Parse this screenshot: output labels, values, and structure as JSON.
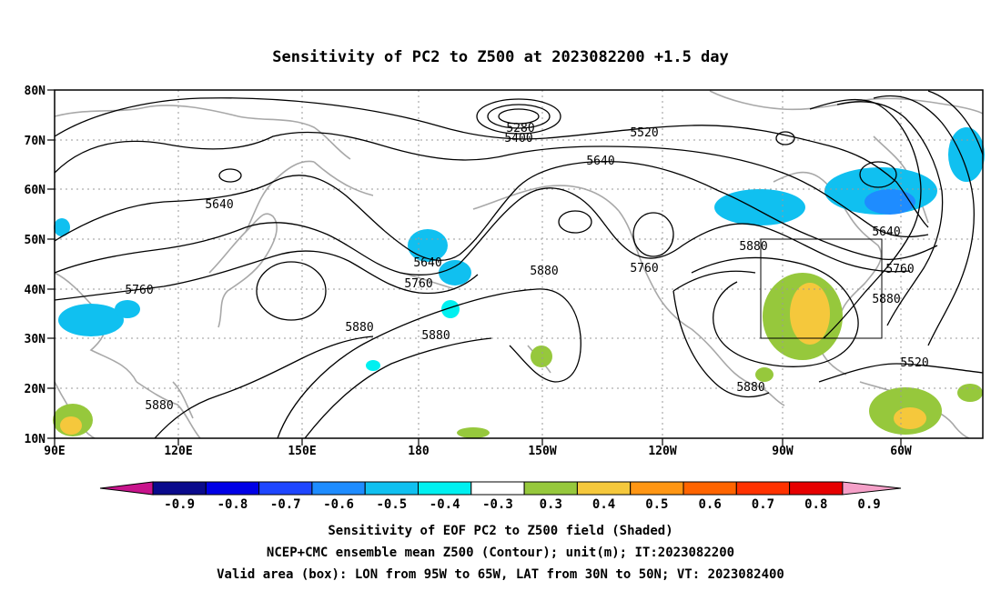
{
  "title": "Sensitivity of PC2 to Z500 at 2023082200 +1.5 day",
  "axes": {
    "lat_labels": [
      "80N",
      "70N",
      "60N",
      "50N",
      "40N",
      "30N",
      "20N",
      "10N"
    ],
    "lon_labels": [
      "90E",
      "120E",
      "150E",
      "180",
      "150W",
      "120W",
      "90W",
      "60W"
    ]
  },
  "contour_labels": [
    {
      "id": "c5280",
      "text": "5280"
    },
    {
      "id": "c5400",
      "text": "5400"
    },
    {
      "id": "c5520a",
      "text": "5520"
    },
    {
      "id": "c5640a",
      "text": "5640"
    },
    {
      "id": "c5640b",
      "text": "5640"
    },
    {
      "id": "c5640c",
      "text": "5640"
    },
    {
      "id": "c5760a",
      "text": "5760"
    },
    {
      "id": "c5760b",
      "text": "5760"
    },
    {
      "id": "c5760c",
      "text": "5760"
    },
    {
      "id": "c5880a",
      "text": "5880"
    },
    {
      "id": "c5880b",
      "text": "5880"
    },
    {
      "id": "c5880c",
      "text": "5880"
    },
    {
      "id": "c5880d",
      "text": "5880"
    },
    {
      "id": "c5880e",
      "text": "5880"
    },
    {
      "id": "c5880f",
      "text": "5880"
    },
    {
      "id": "c5520b",
      "text": "5520"
    },
    {
      "id": "c5640d",
      "text": "5640"
    },
    {
      "id": "c5760d",
      "text": "5760"
    },
    {
      "id": "c5880g",
      "text": "5880"
    }
  ],
  "colorbar": {
    "ticks": [
      "-0.9",
      "-0.8",
      "-0.7",
      "-0.6",
      "-0.5",
      "-0.4",
      "-0.3",
      "0.3",
      "0.4",
      "0.5",
      "0.6",
      "0.7",
      "0.8",
      "0.9"
    ],
    "colors": [
      "#0a0a8c",
      "#0000e6",
      "#1e46ff",
      "#1e8cff",
      "#10c0f0",
      "#00f0f0",
      "#ffffff",
      "#96c83c",
      "#f5c83c",
      "#ff9614",
      "#ff6400",
      "#ff3200",
      "#e60000"
    ],
    "under_color": "#c8148c",
    "over_color": "#f5a0c8"
  },
  "captions": {
    "line1": "Sensitivity of EOF PC2 to Z500 field (Shaded)",
    "line2": "NCEP+CMC ensemble mean Z500 (Contour); unit(m); IT:2023082200",
    "line3": "Valid area (box): LON from 95W to 65W, LAT from 30N to 50N; VT: 2023082400"
  }
}
